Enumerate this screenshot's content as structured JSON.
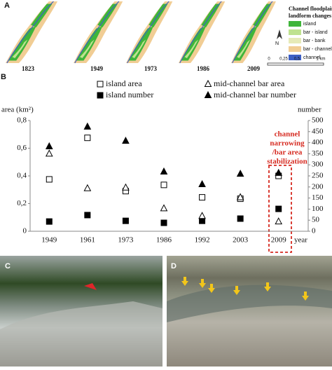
{
  "panel_labels": [
    "A",
    "B",
    "C",
    "D"
  ],
  "map": {
    "years": [
      "1823",
      "1949",
      "1973",
      "1986",
      "2009"
    ],
    "legend_title": [
      "Channel floodplain",
      "landform changes"
    ],
    "legend": [
      {
        "name": "island",
        "color": "#3fb53a"
      },
      {
        "name": "bar - island",
        "color": "#bfe28f"
      },
      {
        "name": "bar - bank",
        "color": "#e6eab8"
      },
      {
        "name": "bar - channel",
        "color": "#f1cd94"
      },
      {
        "name": "channel",
        "color": "#3d5fc4"
      }
    ],
    "north": "N",
    "scale_labels": [
      "0",
      "0,25",
      "0,5",
      "1 km"
    ]
  },
  "chart_data": {
    "type": "scatter",
    "categories": [
      "1949",
      "1961",
      "1973",
      "1986",
      "1992",
      "2003",
      "2009"
    ],
    "y_label": "area (km²)",
    "y2_label": "number",
    "x_label": "year",
    "ylim": [
      0,
      0.8
    ],
    "yticks": [
      0,
      {
        "value": 0.2,
        "label": "0,2"
      },
      {
        "value": 0.4,
        "label": "0,4"
      },
      {
        "value": 0.6,
        "label": "0,6"
      },
      {
        "value": 0.8,
        "label": "0,8"
      }
    ],
    "y2lim": [
      0,
      500
    ],
    "y2ticks": [
      0,
      50,
      100,
      150,
      200,
      250,
      300,
      350,
      400,
      450,
      500
    ],
    "series": [
      {
        "name": "island area",
        "color": "#000000",
        "marker": "square-open",
        "values": [
          0.375,
          0.675,
          0.29,
          0.335,
          0.245,
          0.235,
          0.4
        ]
      },
      {
        "name": "island number",
        "color": "#000000",
        "marker": "square",
        "axis": "y2",
        "values": [
          44,
          73,
          47,
          38,
          47,
          57,
          101
        ]
      },
      {
        "name": "mid-channel bar area",
        "color": "#000000",
        "marker": "triangle-open",
        "values": [
          0.56,
          0.31,
          0.315,
          0.165,
          0.11,
          0.245,
          0.07
        ]
      },
      {
        "name": "mid-channel bar number",
        "color": "#000000",
        "marker": "triangle",
        "axis": "y2",
        "values": [
          383,
          472,
          408,
          269,
          212,
          259,
          263
        ]
      }
    ],
    "annotation": [
      "channel",
      "narrowing",
      "/bar area",
      "stabilization"
    ],
    "annotation_color": "#d62a20"
  }
}
